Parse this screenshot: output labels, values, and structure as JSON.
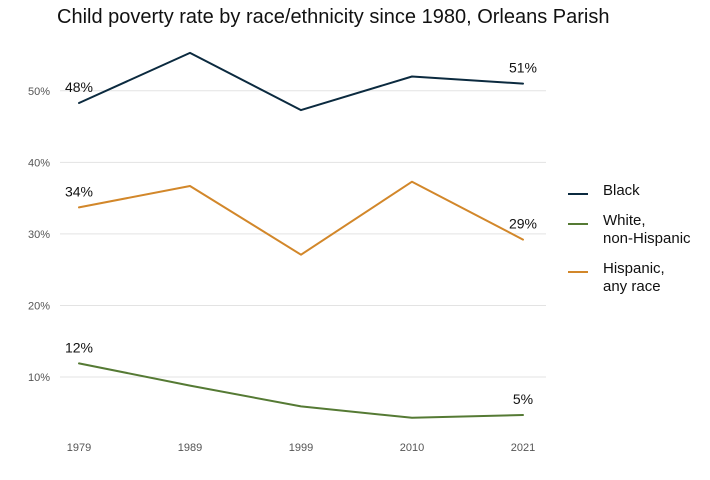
{
  "chart_data": {
    "type": "line",
    "title": "Child poverty rate by race/ethnicity since 1980, Orleans Parish",
    "xlabel": "",
    "ylabel": "",
    "categories": [
      "1979",
      "1989",
      "1999",
      "2010",
      "2021"
    ],
    "ylim": [
      2,
      57
    ],
    "y_ticks": [
      10,
      20,
      30,
      40,
      50
    ],
    "y_tick_labels": [
      "10%",
      "20%",
      "30%",
      "40%",
      "50%"
    ],
    "grid": "horizontal",
    "legend_position": "right",
    "series": [
      {
        "name": "Black",
        "color": "#0b2a3f",
        "values": [
          48.3,
          55.3,
          47.3,
          52.0,
          51.0
        ],
        "start_label": "48%",
        "end_label": "51%"
      },
      {
        "name": "White,\nnon-Hispanic",
        "color": "#557a34",
        "values": [
          11.9,
          8.8,
          5.9,
          4.3,
          4.7
        ],
        "start_label": "12%",
        "end_label": "5%"
      },
      {
        "name": "Hispanic,\nany race",
        "color": "#d2872a",
        "values": [
          33.7,
          36.7,
          27.1,
          37.3,
          29.2
        ],
        "start_label": "34%",
        "end_label": "29%"
      }
    ]
  }
}
